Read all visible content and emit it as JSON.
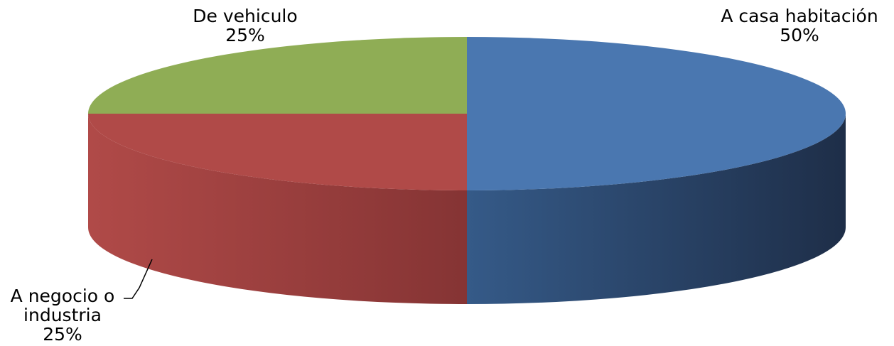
{
  "chart_data": {
    "type": "pie",
    "style": "3d",
    "slices": [
      {
        "label": "A casa habitación",
        "value": 50,
        "pct_label": "50%",
        "color": "#4A77B0",
        "side_light": "#355A88",
        "side_dark": "#1E2E48"
      },
      {
        "label": "A negocio o industria",
        "value": 25,
        "pct_label": "25%",
        "color": "#B04A48",
        "side_light": "#B04A48",
        "side_dark": "#853434"
      },
      {
        "label": "De vehiculo",
        "value": 25,
        "pct_label": "25%",
        "color": "#8FAD55",
        "side_light": "#7A9446",
        "side_dark": "#5E7234"
      }
    ],
    "labels": {
      "casa_name": "A casa habitación",
      "casa_pct": "50%",
      "negocio_line1": "A negocio o",
      "negocio_line2": "industria",
      "negocio_pct": "25%",
      "vehiculo_name": "De vehiculo",
      "vehiculo_pct": "25%"
    }
  }
}
